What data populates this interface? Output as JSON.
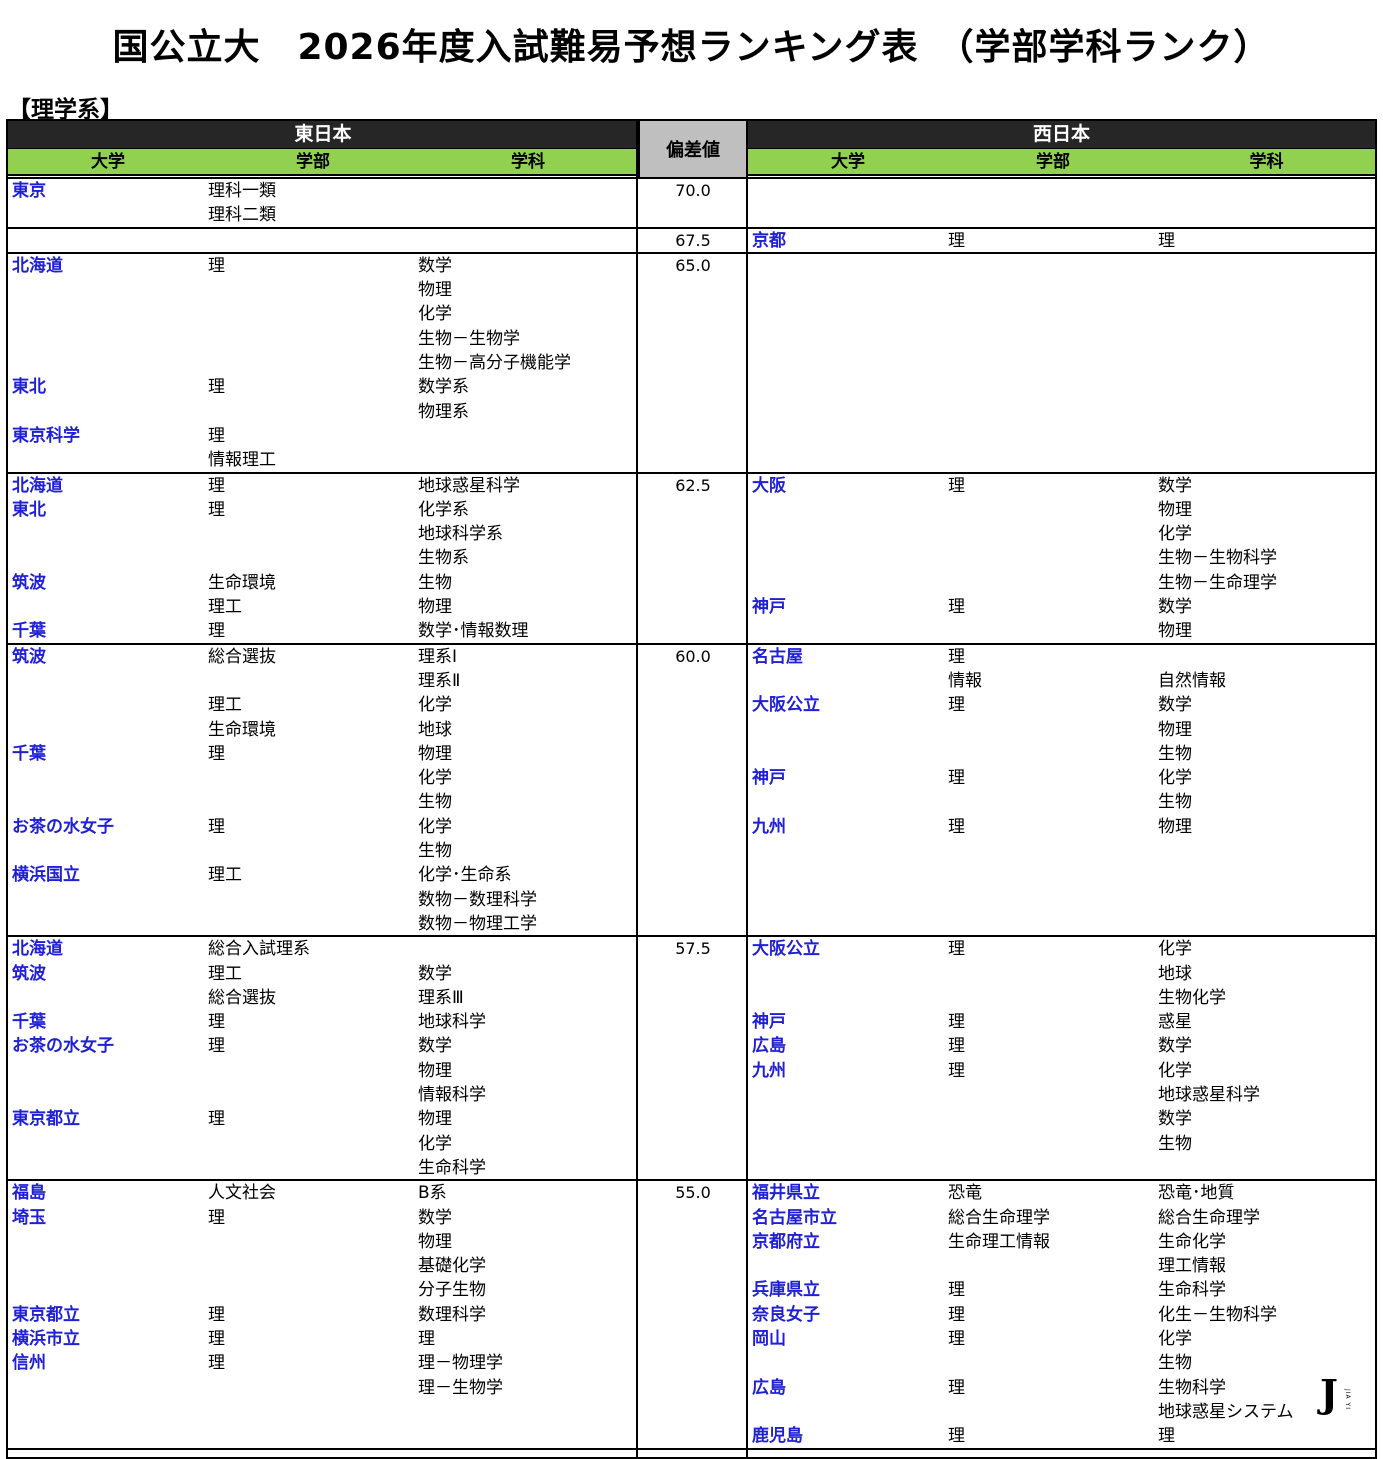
{
  "title": "国公立大　2026年度入試難易予想ランキング表　（学部学科ランク）",
  "section": "【理学系】",
  "headers": {
    "east": "東日本",
    "west": "西日本",
    "score": "偏差値",
    "university": "大学",
    "faculty": "学部",
    "department": "学科"
  },
  "bands": [
    {
      "score": "70.0",
      "rows": 2,
      "east": [
        [
          "東京",
          "理科一類",
          ""
        ],
        [
          "",
          "理科二類",
          ""
        ]
      ],
      "west": []
    },
    {
      "score": "67.5",
      "rows": 1,
      "east": [],
      "west": [
        [
          "京都",
          "理",
          "理"
        ]
      ]
    },
    {
      "score": "65.0",
      "rows": 9,
      "east": [
        [
          "北海道",
          "理",
          "数学"
        ],
        [
          "",
          "",
          "物理"
        ],
        [
          "",
          "",
          "化学"
        ],
        [
          "",
          "",
          "生物－生物学"
        ],
        [
          "",
          "",
          "生物－高分子機能学"
        ],
        [
          "東北",
          "理",
          "数学系"
        ],
        [
          "",
          "",
          "物理系"
        ],
        [
          "東京科学",
          "理",
          ""
        ],
        [
          "",
          "情報理工",
          ""
        ]
      ],
      "west": []
    },
    {
      "score": "62.5",
      "rows": 7,
      "east": [
        [
          "北海道",
          "理",
          "地球惑星科学"
        ],
        [
          "東北",
          "理",
          "化学系"
        ],
        [
          "",
          "",
          "地球科学系"
        ],
        [
          "",
          "",
          "生物系"
        ],
        [
          "筑波",
          "生命環境",
          "生物"
        ],
        [
          "",
          "理工",
          "物理"
        ],
        [
          "千葉",
          "理",
          "数学･情報数理"
        ]
      ],
      "west": [
        [
          "大阪",
          "理",
          "数学"
        ],
        [
          "",
          "",
          "物理"
        ],
        [
          "",
          "",
          "化学"
        ],
        [
          "",
          "",
          "生物－生物科学"
        ],
        [
          "",
          "",
          "生物－生命理学"
        ],
        [
          "神戸",
          "理",
          "数学"
        ],
        [
          "",
          "",
          "物理"
        ]
      ]
    },
    {
      "score": "60.0",
      "rows": 12,
      "east": [
        [
          "筑波",
          "総合選抜",
          "理系Ⅰ"
        ],
        [
          "",
          "",
          "理系Ⅱ"
        ],
        [
          "",
          "理工",
          "化学"
        ],
        [
          "",
          "生命環境",
          "地球"
        ],
        [
          "千葉",
          "理",
          "物理"
        ],
        [
          "",
          "",
          "化学"
        ],
        [
          "",
          "",
          "生物"
        ],
        [
          "お茶の水女子",
          "理",
          "化学"
        ],
        [
          "",
          "",
          "生物"
        ],
        [
          "横浜国立",
          "理工",
          "化学･生命系"
        ],
        [
          "",
          "",
          "数物－数理科学"
        ],
        [
          "",
          "",
          "数物－物理工学"
        ]
      ],
      "west": [
        [
          "名古屋",
          "理",
          ""
        ],
        [
          "",
          "情報",
          "自然情報"
        ],
        [
          "大阪公立",
          "理",
          "数学"
        ],
        [
          "",
          "",
          "物理"
        ],
        [
          "",
          "",
          "生物"
        ],
        [
          "神戸",
          "理",
          "化学"
        ],
        [
          "",
          "",
          "生物"
        ],
        [
          "九州",
          "理",
          "物理"
        ]
      ]
    },
    {
      "score": "57.5",
      "rows": 10,
      "east": [
        [
          "北海道",
          "総合入試理系",
          ""
        ],
        [
          "筑波",
          "理工",
          "数学"
        ],
        [
          "",
          "総合選抜",
          "理系Ⅲ"
        ],
        [
          "千葉",
          "理",
          "地球科学"
        ],
        [
          "お茶の水女子",
          "理",
          "数学"
        ],
        [
          "",
          "",
          "物理"
        ],
        [
          "",
          "",
          "情報科学"
        ],
        [
          "東京都立",
          "理",
          "物理"
        ],
        [
          "",
          "",
          "化学"
        ],
        [
          "",
          "",
          "生命科学"
        ]
      ],
      "west": [
        [
          "大阪公立",
          "理",
          "化学"
        ],
        [
          "",
          "",
          "地球"
        ],
        [
          "",
          "",
          "生物化学"
        ],
        [
          "神戸",
          "理",
          "惑星"
        ],
        [
          "広島",
          "理",
          "数学"
        ],
        [
          "九州",
          "理",
          "化学"
        ],
        [
          "",
          "",
          "地球惑星科学"
        ],
        [
          "",
          "",
          "数学"
        ],
        [
          "",
          "",
          "生物"
        ]
      ]
    },
    {
      "score": "55.0",
      "rows": 11,
      "east": [
        [
          "福島",
          "人文社会",
          "B系"
        ],
        [
          "埼玉",
          "理",
          "数学"
        ],
        [
          "",
          "",
          "物理"
        ],
        [
          "",
          "",
          "基礎化学"
        ],
        [
          "",
          "",
          "分子生物"
        ],
        [
          "東京都立",
          "理",
          "数理科学"
        ],
        [
          "横浜市立",
          "理",
          "理"
        ],
        [
          "信州",
          "理",
          "理－物理学"
        ],
        [
          "",
          "",
          "理－生物学"
        ]
      ],
      "west": [
        [
          "福井県立",
          "恐竜",
          "恐竜･地質"
        ],
        [
          "名古屋市立",
          "総合生命理学",
          "総合生命理学"
        ],
        [
          "京都府立",
          "生命理工情報",
          "生命化学"
        ],
        [
          "",
          "",
          "理工情報"
        ],
        [
          "兵庫県立",
          "理",
          "生命科学"
        ],
        [
          "奈良女子",
          "理",
          "化生－生物科学"
        ],
        [
          "岡山",
          "理",
          "化学"
        ],
        [
          "",
          "",
          "生物"
        ],
        [
          "広島",
          "理",
          "生物科学"
        ],
        [
          "",
          "",
          "地球惑星システム"
        ],
        [
          "鹿児島",
          "理",
          "理"
        ]
      ]
    }
  ],
  "logo": {
    "mark": "J",
    "text": "JIA YI"
  }
}
